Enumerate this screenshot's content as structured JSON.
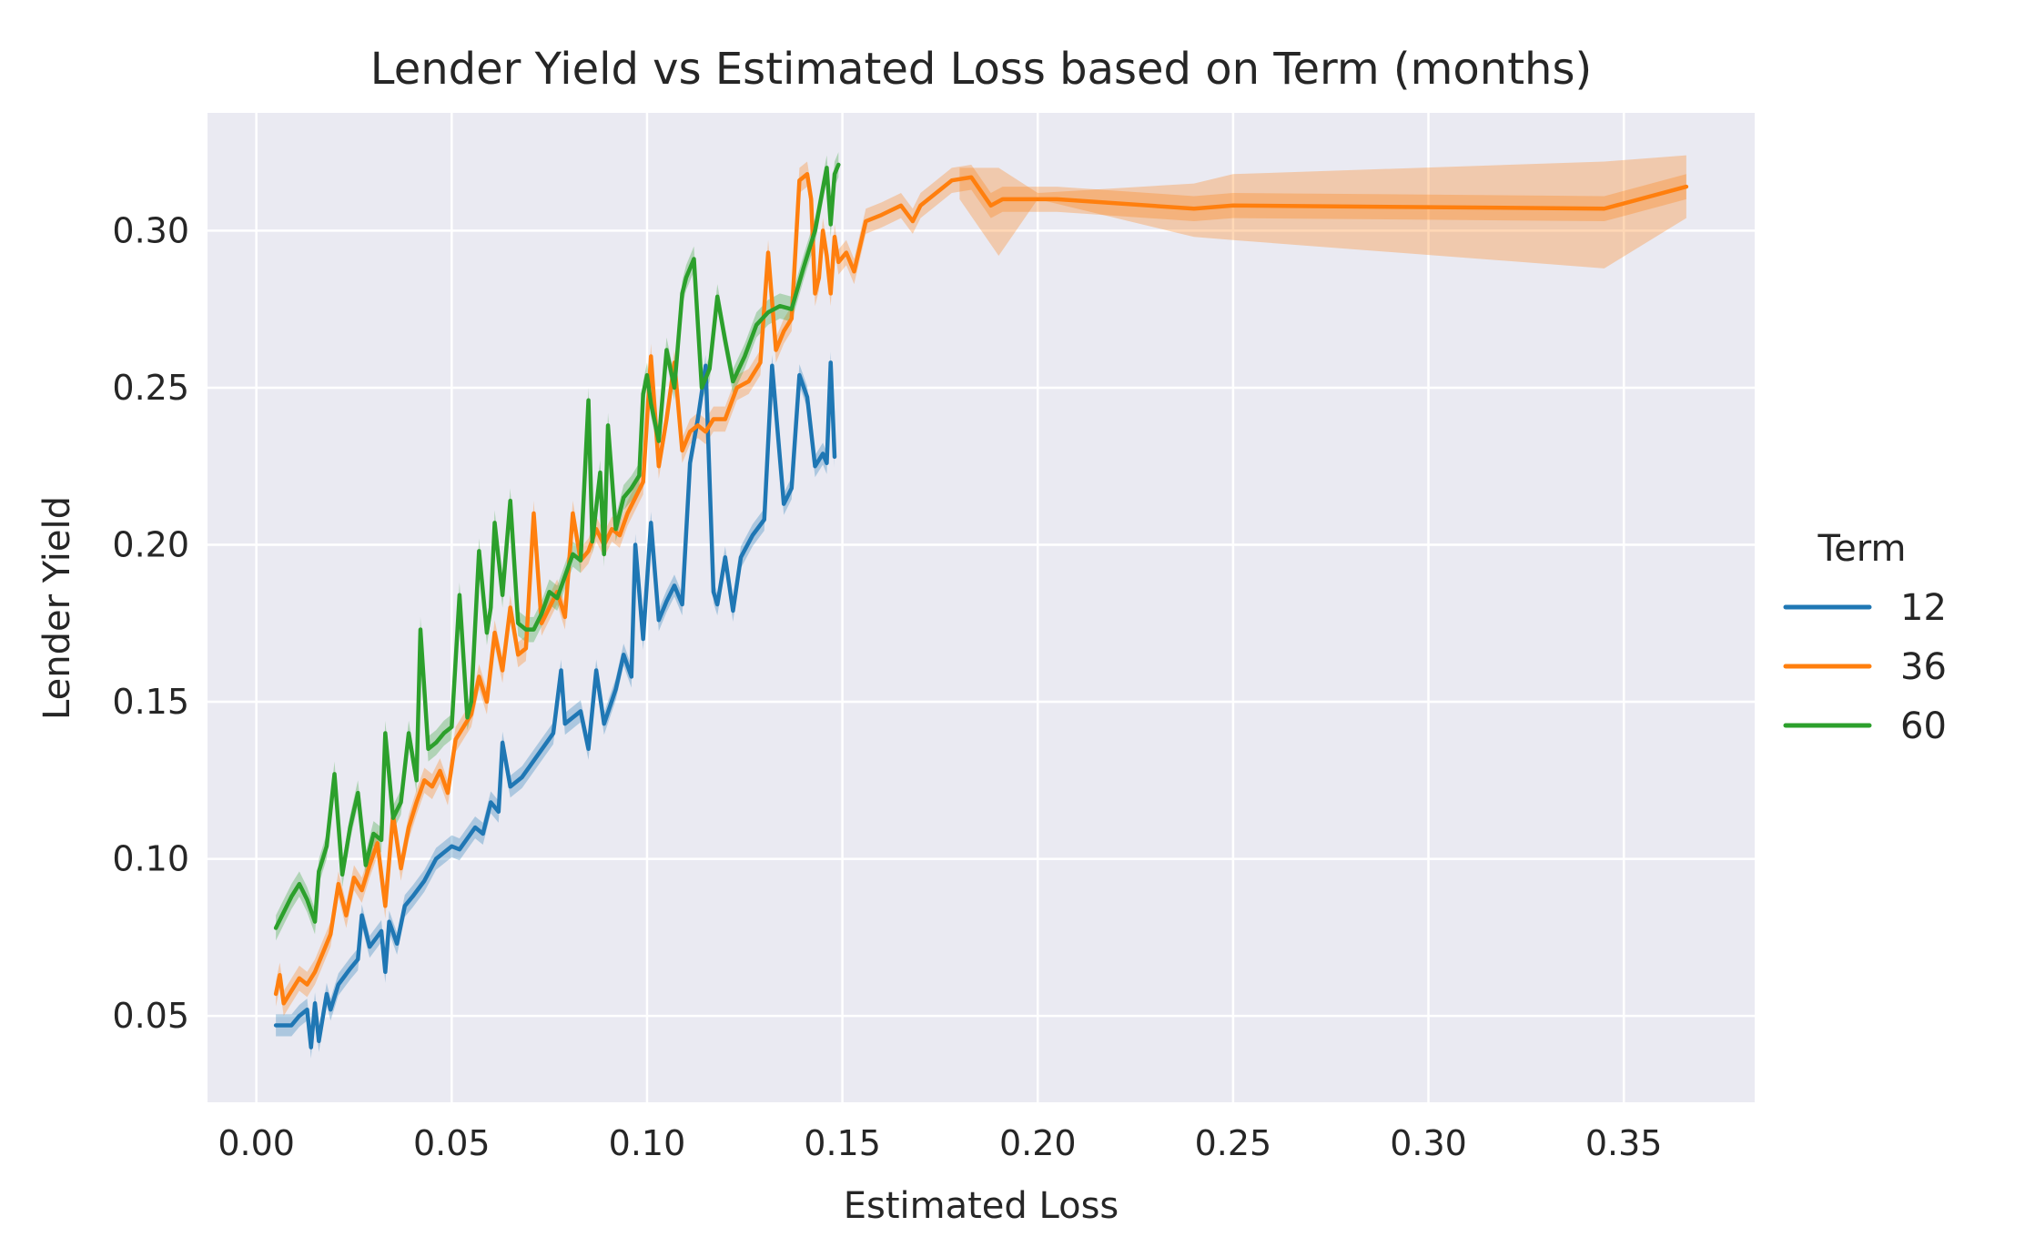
{
  "chart_data": {
    "type": "line",
    "title": "Lender Yield vs Estimated Loss based on Term (months)",
    "xlabel": "Estimated Loss",
    "ylabel": "Lender Yield",
    "xlim": [
      -0.0125,
      0.3835
    ],
    "ylim": [
      0.0225,
      0.3375
    ],
    "xticks": [
      "0.00",
      "0.05",
      "0.10",
      "0.15",
      "0.20",
      "0.25",
      "0.30",
      "0.35"
    ],
    "yticks": [
      "0.05",
      "0.10",
      "0.15",
      "0.20",
      "0.25",
      "0.30"
    ],
    "grid": true,
    "background": "#eaeaf2",
    "legend": {
      "title": "Term",
      "placement": "right"
    },
    "series": [
      {
        "name": "12",
        "color": "#1f77b4",
        "x": [
          0.005,
          0.009,
          0.011,
          0.013,
          0.014,
          0.015,
          0.016,
          0.018,
          0.019,
          0.021,
          0.024,
          0.026,
          0.027,
          0.029,
          0.032,
          0.033,
          0.034,
          0.036,
          0.038,
          0.04,
          0.043,
          0.046,
          0.048,
          0.05,
          0.052,
          0.056,
          0.058,
          0.06,
          0.062,
          0.063,
          0.065,
          0.068,
          0.072,
          0.076,
          0.078,
          0.079,
          0.081,
          0.083,
          0.085,
          0.087,
          0.089,
          0.092,
          0.094,
          0.096,
          0.097,
          0.099,
          0.101,
          0.103,
          0.105,
          0.107,
          0.109,
          0.111,
          0.113,
          0.115,
          0.117,
          0.118,
          0.12,
          0.122,
          0.124,
          0.127,
          0.13,
          0.132,
          0.135,
          0.137,
          0.139,
          0.141,
          0.143,
          0.145,
          0.146,
          0.147,
          0.148
        ],
        "y": [
          0.047,
          0.047,
          0.05,
          0.052,
          0.04,
          0.054,
          0.042,
          0.057,
          0.052,
          0.06,
          0.065,
          0.068,
          0.082,
          0.072,
          0.077,
          0.064,
          0.08,
          0.073,
          0.085,
          0.088,
          0.093,
          0.1,
          0.102,
          0.104,
          0.103,
          0.11,
          0.108,
          0.118,
          0.115,
          0.137,
          0.123,
          0.126,
          0.133,
          0.14,
          0.16,
          0.143,
          0.145,
          0.147,
          0.135,
          0.16,
          0.143,
          0.154,
          0.165,
          0.158,
          0.2,
          0.17,
          0.207,
          0.176,
          0.182,
          0.187,
          0.181,
          0.226,
          0.24,
          0.257,
          0.185,
          0.181,
          0.196,
          0.179,
          0.196,
          0.203,
          0.208,
          0.257,
          0.213,
          0.218,
          0.254,
          0.247,
          0.225,
          0.229,
          0.226,
          0.258,
          0.228
        ],
        "band_halfwidth": 0.0035
      },
      {
        "name": "36",
        "color": "#ff7f0e",
        "x": [
          0.005,
          0.006,
          0.007,
          0.009,
          0.011,
          0.013,
          0.015,
          0.017,
          0.019,
          0.021,
          0.023,
          0.025,
          0.027,
          0.029,
          0.031,
          0.033,
          0.035,
          0.037,
          0.039,
          0.041,
          0.043,
          0.045,
          0.047,
          0.049,
          0.051,
          0.053,
          0.055,
          0.057,
          0.059,
          0.061,
          0.063,
          0.065,
          0.067,
          0.069,
          0.071,
          0.073,
          0.075,
          0.077,
          0.079,
          0.081,
          0.083,
          0.085,
          0.087,
          0.089,
          0.091,
          0.093,
          0.095,
          0.097,
          0.099,
          0.101,
          0.103,
          0.105,
          0.107,
          0.109,
          0.111,
          0.113,
          0.115,
          0.117,
          0.12,
          0.123,
          0.126,
          0.129,
          0.131,
          0.133,
          0.135,
          0.137,
          0.139,
          0.141,
          0.142,
          0.143,
          0.144,
          0.145,
          0.146,
          0.147,
          0.148,
          0.149,
          0.151,
          0.153,
          0.156,
          0.16,
          0.165,
          0.168,
          0.17,
          0.172,
          0.178,
          0.183,
          0.188,
          0.191,
          0.196,
          0.205,
          0.24,
          0.25,
          0.345,
          0.366
        ],
        "y": [
          0.057,
          0.063,
          0.054,
          0.058,
          0.062,
          0.06,
          0.064,
          0.07,
          0.076,
          0.092,
          0.082,
          0.094,
          0.09,
          0.098,
          0.105,
          0.085,
          0.114,
          0.097,
          0.11,
          0.118,
          0.125,
          0.123,
          0.128,
          0.121,
          0.138,
          0.142,
          0.146,
          0.158,
          0.15,
          0.172,
          0.16,
          0.18,
          0.165,
          0.167,
          0.21,
          0.175,
          0.18,
          0.185,
          0.177,
          0.21,
          0.195,
          0.198,
          0.205,
          0.2,
          0.205,
          0.203,
          0.21,
          0.215,
          0.22,
          0.26,
          0.225,
          0.24,
          0.258,
          0.23,
          0.236,
          0.238,
          0.236,
          0.24,
          0.24,
          0.25,
          0.252,
          0.258,
          0.293,
          0.262,
          0.268,
          0.272,
          0.316,
          0.318,
          0.31,
          0.28,
          0.285,
          0.3,
          0.292,
          0.28,
          0.298,
          0.29,
          0.293,
          0.287,
          0.303,
          0.305,
          0.308,
          0.303,
          0.308,
          0.31,
          0.316,
          0.317,
          0.308,
          0.31,
          0.31,
          0.31,
          0.307,
          0.308,
          0.307,
          0.314
        ],
        "band_halfwidth": 0.004,
        "band_wide": {
          "x": [
            0.18,
            0.19,
            0.2,
            0.24,
            0.25,
            0.345,
            0.366
          ],
          "lower": [
            0.31,
            0.292,
            0.31,
            0.298,
            0.297,
            0.288,
            0.304
          ],
          "upper": [
            0.32,
            0.32,
            0.312,
            0.315,
            0.318,
            0.322,
            0.324
          ]
        }
      },
      {
        "name": "60",
        "color": "#2ca02c",
        "x": [
          0.005,
          0.007,
          0.009,
          0.011,
          0.013,
          0.015,
          0.016,
          0.018,
          0.02,
          0.022,
          0.024,
          0.026,
          0.028,
          0.03,
          0.032,
          0.033,
          0.035,
          0.037,
          0.039,
          0.041,
          0.042,
          0.044,
          0.046,
          0.048,
          0.05,
          0.052,
          0.054,
          0.055,
          0.057,
          0.059,
          0.06,
          0.061,
          0.063,
          0.065,
          0.067,
          0.069,
          0.071,
          0.073,
          0.075,
          0.077,
          0.079,
          0.081,
          0.083,
          0.085,
          0.086,
          0.088,
          0.089,
          0.09,
          0.092,
          0.094,
          0.096,
          0.098,
          0.099,
          0.1,
          0.101,
          0.103,
          0.105,
          0.107,
          0.109,
          0.11,
          0.112,
          0.114,
          0.116,
          0.118,
          0.12,
          0.122,
          0.125,
          0.128,
          0.131,
          0.134,
          0.137,
          0.14,
          0.143,
          0.146,
          0.147,
          0.148,
          0.149
        ],
        "y": [
          0.078,
          0.083,
          0.088,
          0.092,
          0.087,
          0.08,
          0.096,
          0.104,
          0.127,
          0.095,
          0.11,
          0.121,
          0.098,
          0.108,
          0.106,
          0.14,
          0.113,
          0.118,
          0.14,
          0.125,
          0.173,
          0.135,
          0.137,
          0.14,
          0.142,
          0.184,
          0.145,
          0.15,
          0.198,
          0.172,
          0.18,
          0.207,
          0.184,
          0.214,
          0.175,
          0.173,
          0.173,
          0.178,
          0.185,
          0.183,
          0.19,
          0.197,
          0.195,
          0.246,
          0.201,
          0.223,
          0.197,
          0.238,
          0.205,
          0.215,
          0.218,
          0.222,
          0.248,
          0.254,
          0.245,
          0.233,
          0.262,
          0.25,
          0.28,
          0.285,
          0.291,
          0.25,
          0.256,
          0.279,
          0.265,
          0.252,
          0.26,
          0.27,
          0.274,
          0.276,
          0.275,
          0.288,
          0.3,
          0.32,
          0.302,
          0.318,
          0.321
        ],
        "band_halfwidth": 0.004
      }
    ]
  }
}
